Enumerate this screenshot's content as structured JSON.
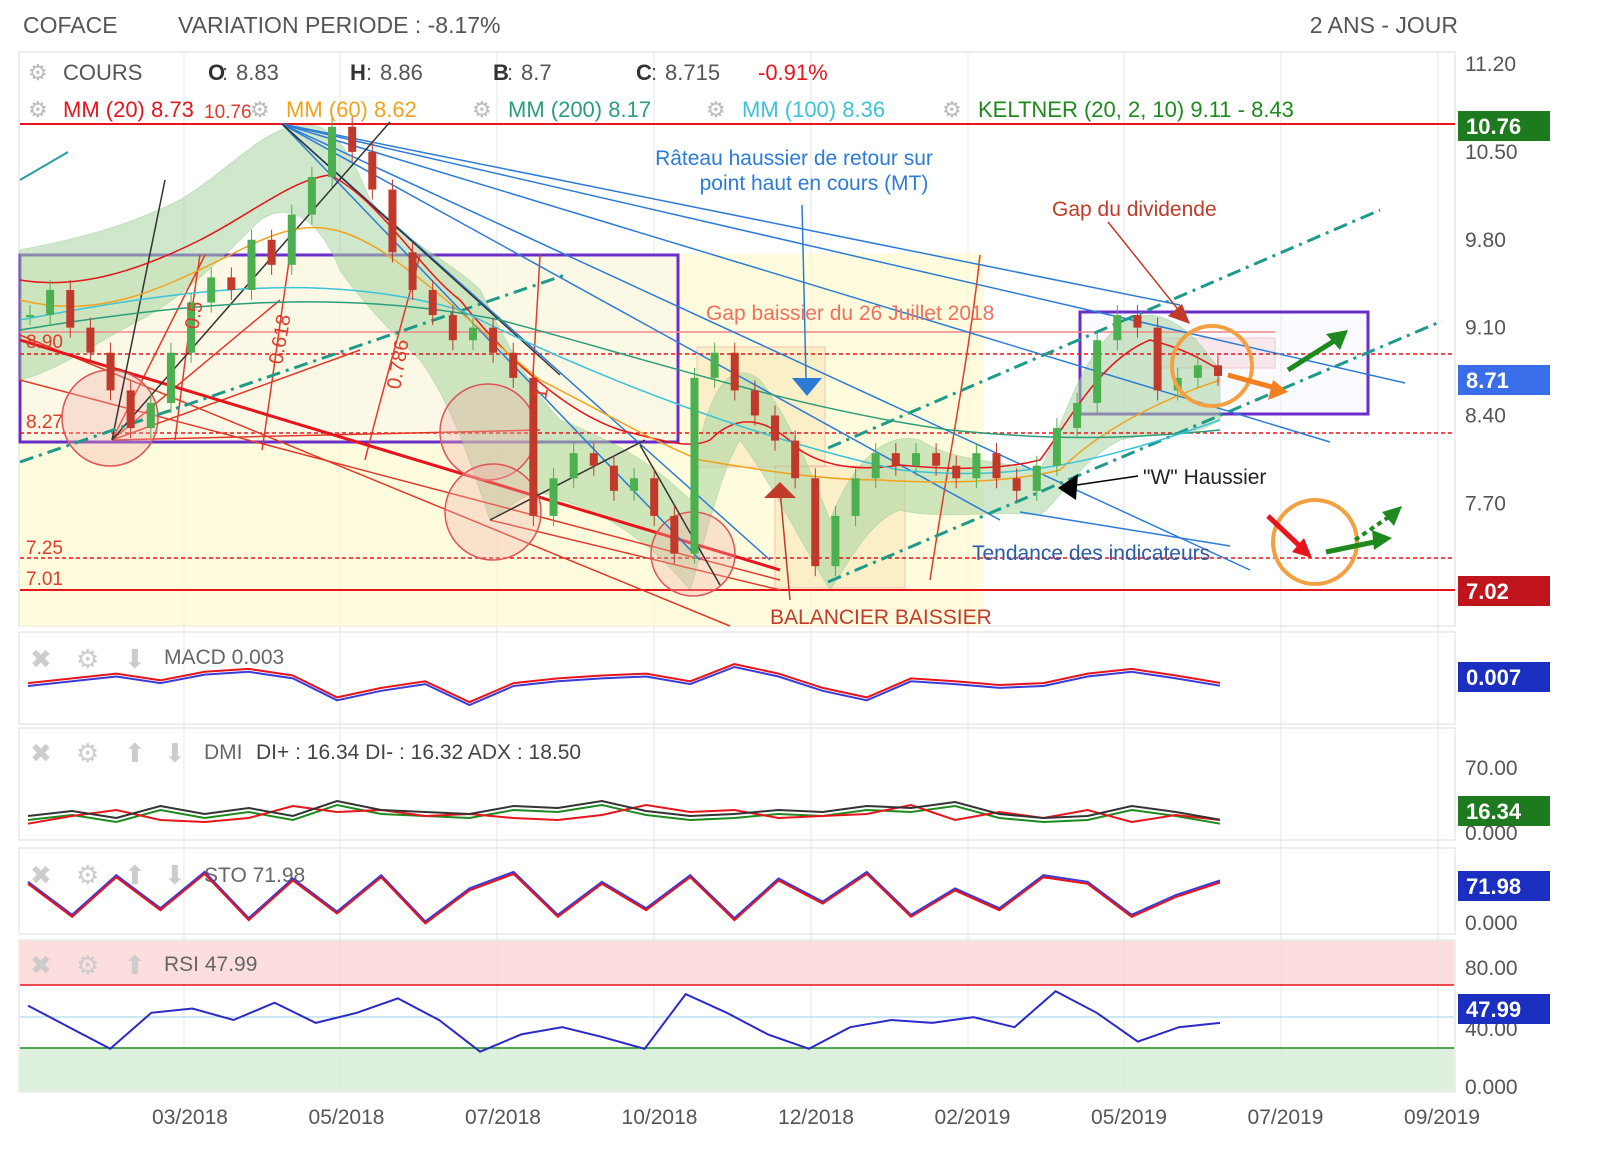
{
  "header": {
    "ticker": "COFACE",
    "variation": "VARIATION PERIODE : -8.17%",
    "period": "2 ANS - JOUR"
  },
  "ohlc": {
    "label": "COURS",
    "o_key": "O",
    "o": "8.83",
    "h_key": "H",
    "h": "8.86",
    "b_key": "B",
    "b": "8.7",
    "c_key": "C",
    "c": "8.715",
    "change": "-0.91%"
  },
  "indicators": {
    "mm20": "MM (20) 8.73",
    "mm60": "MM (60) 8.62",
    "mm200": "MM (200) 8.17",
    "mm100": "MM (100) 8.36",
    "keltner": "KELTNER (20, 2, 10) 9.11 - 8.43"
  },
  "colors": {
    "mm20": "#e8141c",
    "mm60": "#f2a21c",
    "mm200": "#2a9d7a",
    "mm100": "#3cc3d8",
    "keltner": "#1e8a1e",
    "candle_up": "#4caf50",
    "candle_down": "#c0392b",
    "bollinger_fill": "#a8d5a0",
    "annot_blue": "#2c7bd6",
    "annot_red": "#e23a2a",
    "purple_box": "#6a2ec8",
    "orange_circle": "#f5a040"
  },
  "annotations": {
    "rateau": "Râteau haussier de retour sur",
    "rateau2": "point haut en cours (MT)",
    "gap_div": "Gap du dividende",
    "gap_baissier": "Gap baissier du 26 Juillet 2018",
    "w_haussier": "\"W\" Haussier",
    "tendance": "Tendance des indicateurs",
    "balancier": "BALANCIER BAISSIER",
    "fib_05": "0.5",
    "fib_0618": "0.618",
    "fib_0786": "0.786",
    "fib_1": "1",
    "level_890": "8.90",
    "level_827": "8.27",
    "level_725": "7.25",
    "level_701": "7.01",
    "level_1076": "10.76"
  },
  "chart_data": [
    {
      "type": "candlestick",
      "title": "COFACE",
      "yticks": [
        "11.20",
        "10.50",
        "9.80",
        "9.10",
        "8.40",
        "7.70"
      ],
      "ylim": [
        6.95,
        11.2
      ],
      "x_ticks": [
        "03/2018",
        "05/2018",
        "07/2018",
        "10/2018",
        "12/2018",
        "02/2019",
        "05/2019",
        "07/2019",
        "09/2019"
      ],
      "price_badges": {
        "high": "10.76",
        "last": "8.71",
        "low": "7.02"
      },
      "levels": [
        10.76,
        8.9,
        8.27,
        7.25,
        7.01
      ],
      "close_series": [
        9.2,
        9.4,
        9.1,
        8.9,
        8.6,
        8.3,
        8.5,
        8.9,
        9.3,
        9.5,
        9.4,
        9.8,
        9.6,
        10.0,
        10.3,
        10.7,
        10.5,
        10.2,
        9.7,
        9.4,
        9.2,
        9.0,
        9.1,
        8.9,
        8.7,
        7.6,
        7.9,
        8.1,
        8.0,
        7.8,
        7.9,
        7.6,
        7.3,
        8.7,
        8.9,
        8.6,
        8.4,
        8.2,
        7.9,
        7.2,
        7.6,
        7.9,
        8.1,
        8.0,
        8.1,
        8.0,
        7.9,
        8.1,
        7.9,
        7.8,
        8.0,
        8.3,
        8.5,
        9.0,
        9.2,
        9.1,
        8.6,
        8.7,
        8.8,
        8.715
      ]
    },
    {
      "type": "line",
      "title": "MACD",
      "value_label": "MACD 0.003",
      "badge": "0.007",
      "series": [
        {
          "values": [
            0.0,
            0.05,
            0.1,
            0.03,
            0.12,
            0.15,
            0.08,
            -0.15,
            -0.05,
            0.02,
            -0.2,
            0.0,
            0.05,
            0.08,
            0.1,
            0.02,
            0.2,
            0.1,
            -0.05,
            -0.15,
            0.05,
            0.02,
            -0.02,
            0.0,
            0.1,
            0.15,
            0.08,
            0.003
          ]
        }
      ]
    },
    {
      "type": "line",
      "title": "DMI",
      "value_label": "DI+ : 16.34 DI- : 16.32 ADX : 18.50",
      "yticks": [
        "70.00",
        "0.000"
      ],
      "badge": "16.34",
      "series": [
        {
          "values": [
            20,
            25,
            18,
            30,
            22,
            28,
            20,
            35,
            26,
            24,
            22,
            30,
            28,
            35,
            25,
            20,
            22,
            26,
            24,
            30,
            28,
            34,
            22,
            18,
            20,
            30,
            24,
            16.34
          ]
        }
      ]
    },
    {
      "type": "line",
      "title": "STO",
      "value_label": "STO 71.98",
      "yticks": [
        "0.000"
      ],
      "badge": "71.98",
      "series": [
        {
          "values": [
            70,
            20,
            80,
            30,
            85,
            15,
            75,
            25,
            80,
            10,
            60,
            85,
            20,
            70,
            30,
            80,
            15,
            75,
            40,
            85,
            20,
            60,
            30,
            80,
            70,
            20,
            50,
            71.98
          ]
        }
      ]
    },
    {
      "type": "line",
      "title": "RSI",
      "value_label": "RSI 47.99",
      "yticks": [
        "80.00",
        "40.00",
        "0.000"
      ],
      "badge": "47.99",
      "series": [
        {
          "values": [
            60,
            45,
            30,
            55,
            58,
            50,
            62,
            48,
            55,
            65,
            50,
            28,
            40,
            45,
            38,
            30,
            68,
            55,
            40,
            30,
            45,
            50,
            48,
            52,
            45,
            70,
            55,
            35,
            45,
            47.99
          ]
        }
      ]
    }
  ]
}
